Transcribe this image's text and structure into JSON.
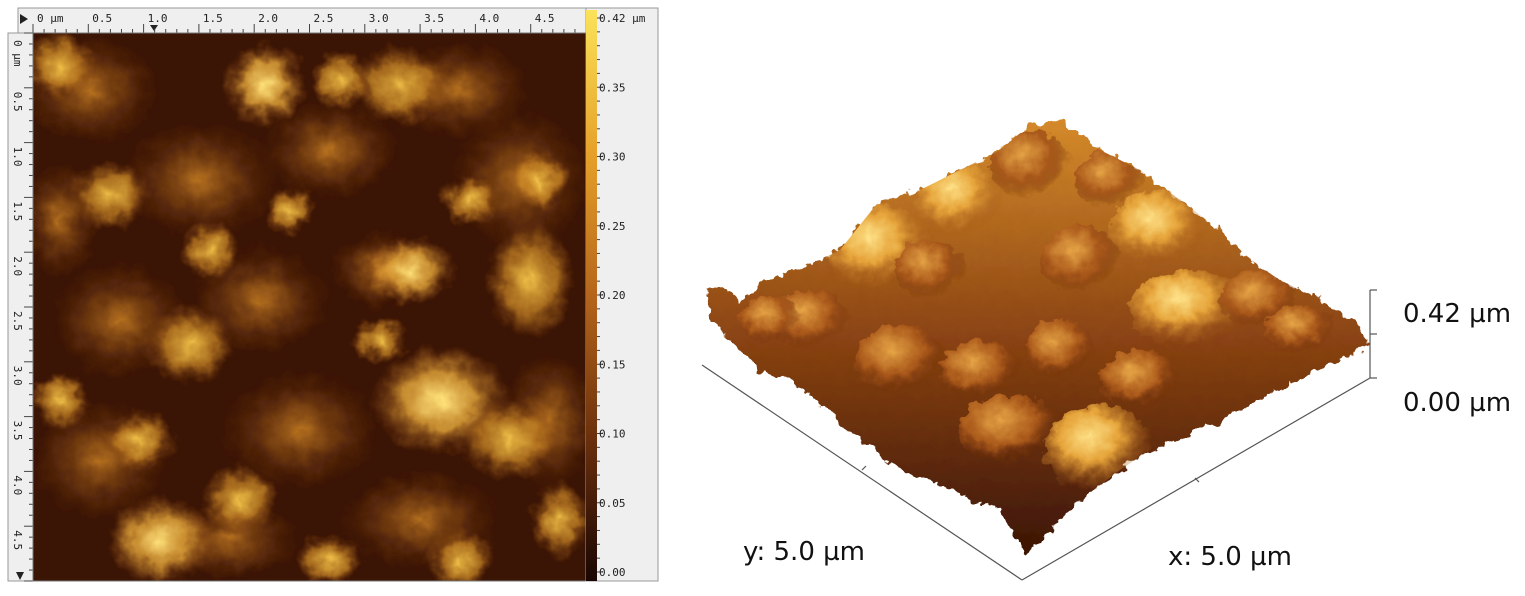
{
  "afm_2d": {
    "x_axis": {
      "unit_label": "0 µm",
      "ticks": [
        "0.5",
        "1.0",
        "1.5",
        "2.0",
        "2.5",
        "3.0",
        "3.5",
        "4.0",
        "4.5"
      ]
    },
    "y_axis": {
      "unit_label": "0 µm",
      "ticks": [
        "0.5",
        "1.0",
        "1.5",
        "2.0",
        "2.5",
        "3.0",
        "3.5",
        "4.0",
        "4.5"
      ]
    },
    "colorbar": {
      "labels": [
        "0.42 µm",
        "0.35",
        "0.30",
        "0.25",
        "0.20",
        "0.15",
        "0.10",
        "0.05",
        "0.00"
      ],
      "colors": [
        "#f9d94a",
        "#e6a12a",
        "#b5651b",
        "#7a3a10",
        "#2a0c03"
      ]
    }
  },
  "afm_3d": {
    "z_max_label": "0.42 µm",
    "z_min_label": "0.00 µm",
    "y_label": "y: 5.0 µm",
    "x_label": "x: 5.0 µm"
  }
}
